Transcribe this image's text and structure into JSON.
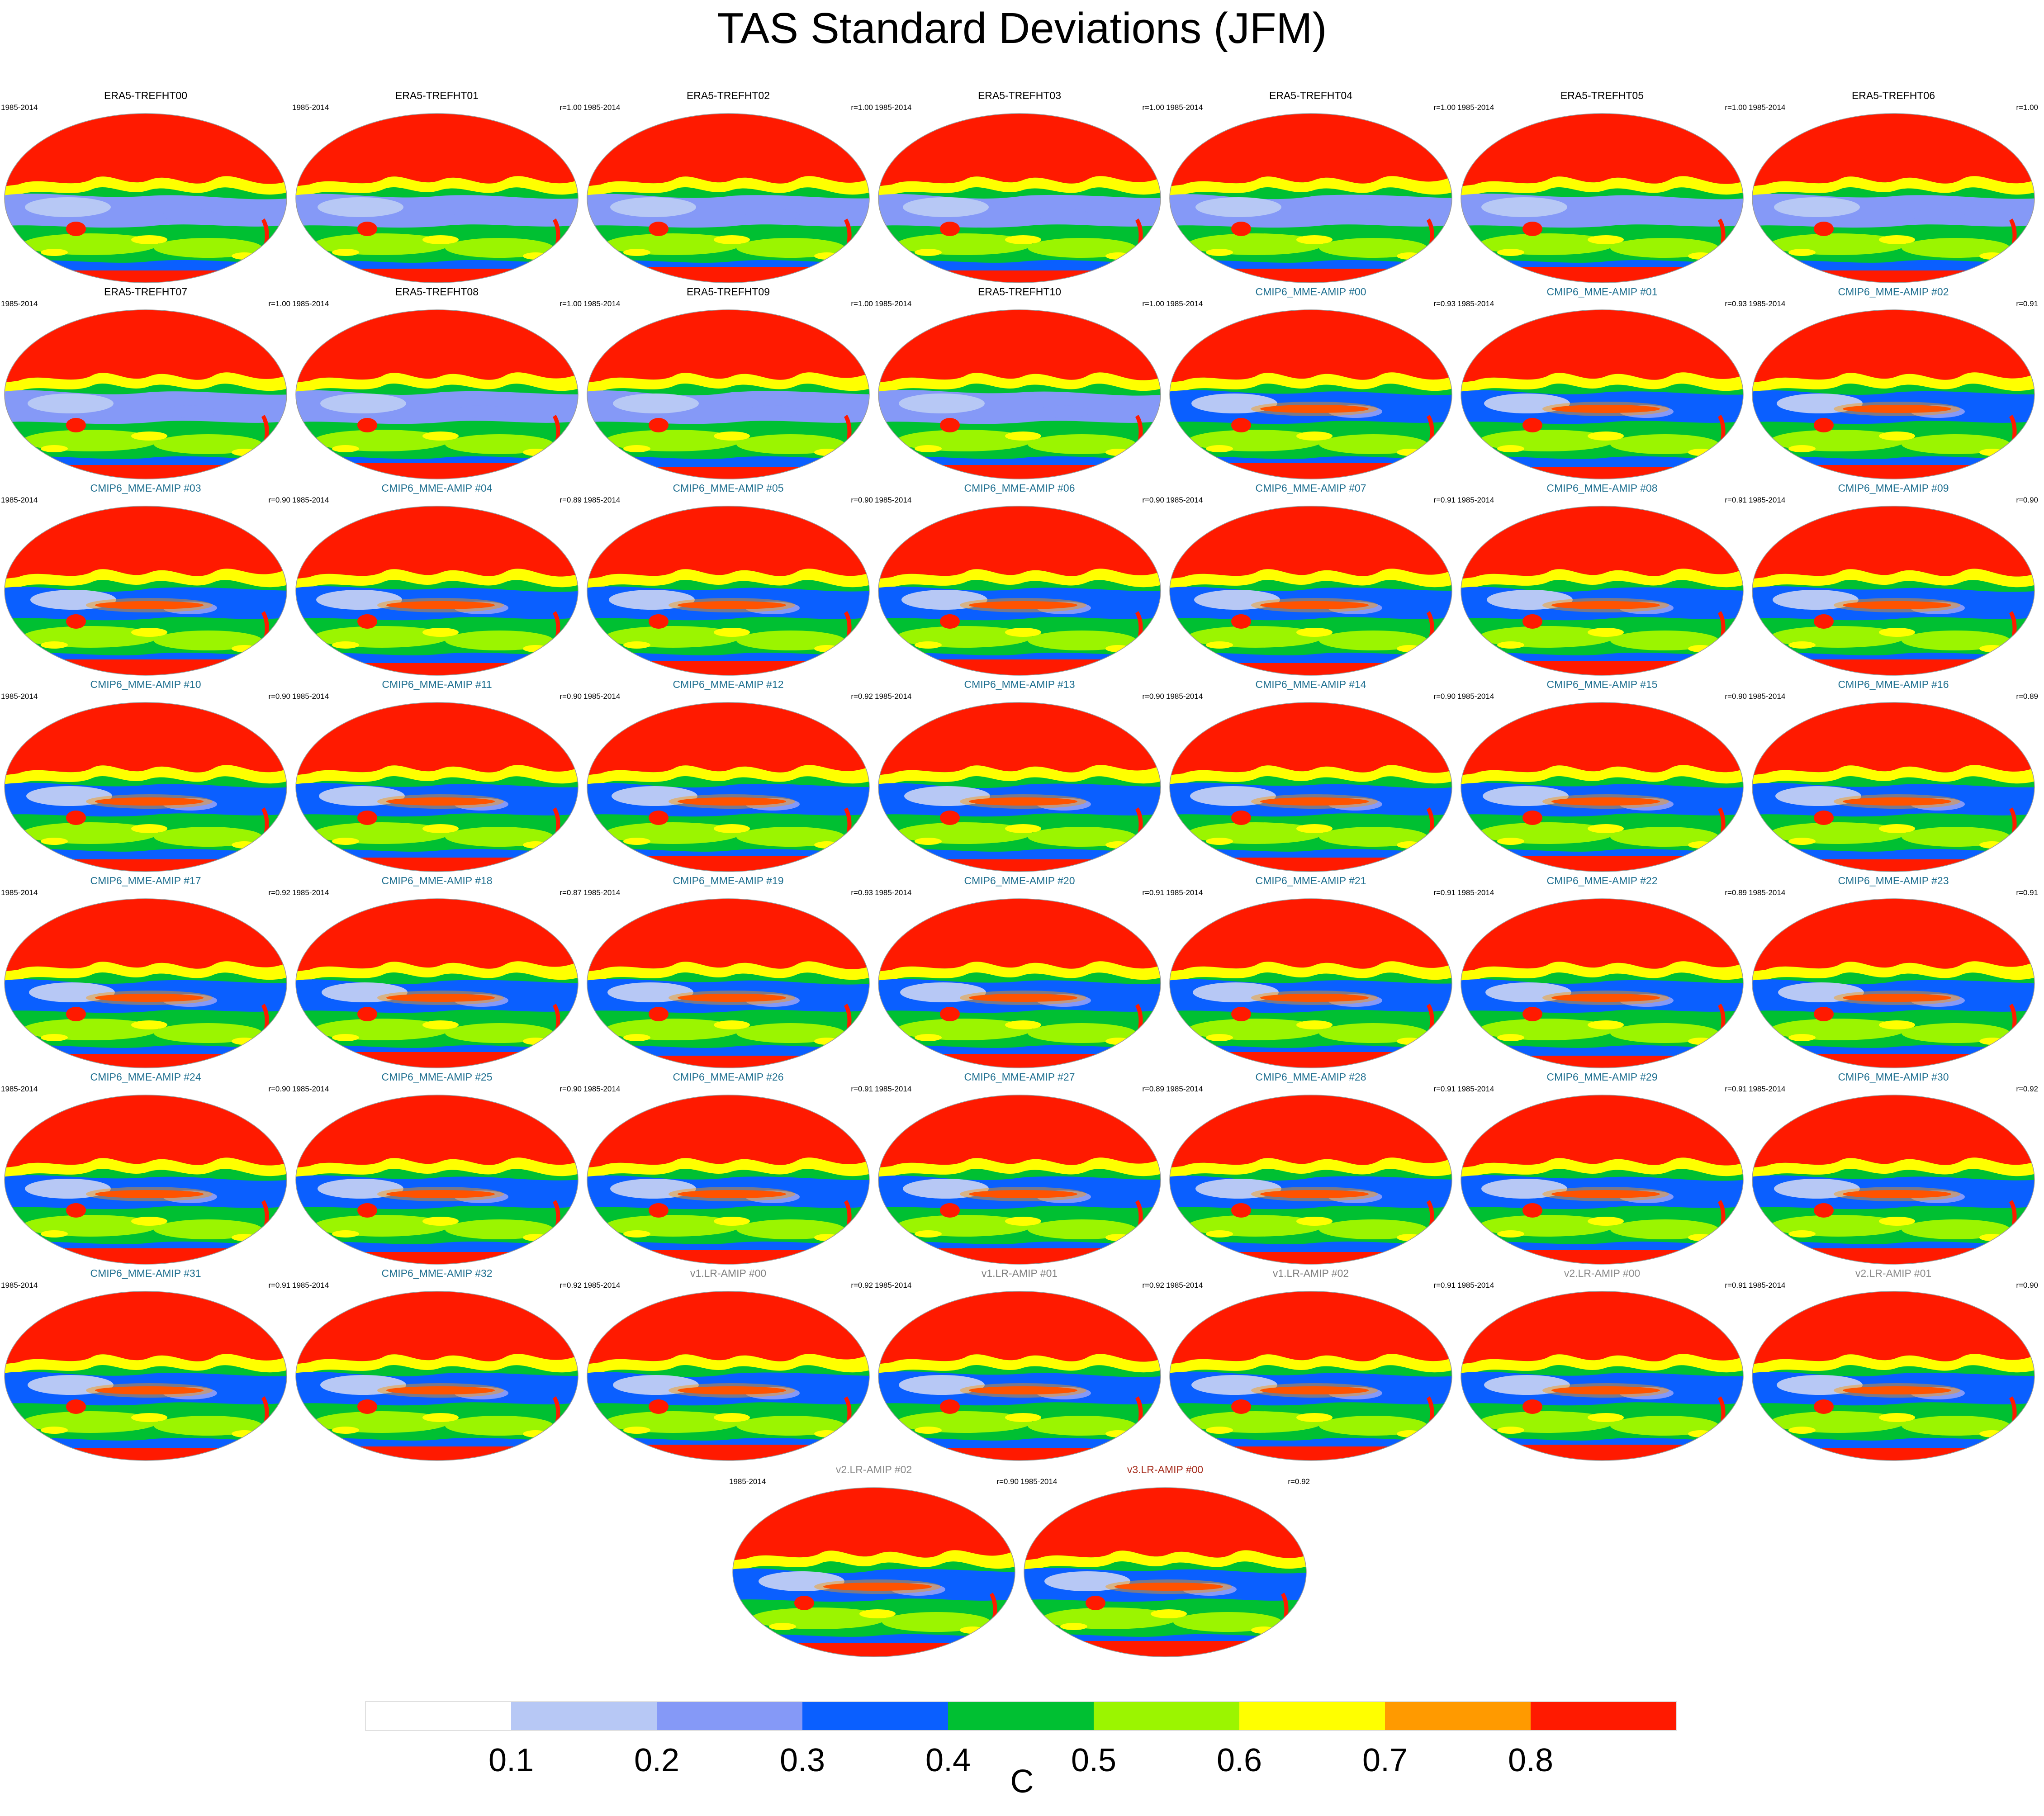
{
  "title": "TAS Standard Deviations (JFM)",
  "period": "1985-2014",
  "panels": [
    {
      "label": "ERA5-TREFHT00",
      "corr": "",
      "group": "era5"
    },
    {
      "label": "ERA5-TREFHT01",
      "corr": "r=1.00",
      "group": "era5"
    },
    {
      "label": "ERA5-TREFHT02",
      "corr": "r=1.00",
      "group": "era5"
    },
    {
      "label": "ERA5-TREFHT03",
      "corr": "r=1.00",
      "group": "era5"
    },
    {
      "label": "ERA5-TREFHT04",
      "corr": "r=1.00",
      "group": "era5"
    },
    {
      "label": "ERA5-TREFHT05",
      "corr": "r=1.00",
      "group": "era5"
    },
    {
      "label": "ERA5-TREFHT06",
      "corr": "r=1.00",
      "group": "era5"
    },
    {
      "label": "ERA5-TREFHT07",
      "corr": "r=1.00",
      "group": "era5"
    },
    {
      "label": "ERA5-TREFHT08",
      "corr": "r=1.00",
      "group": "era5"
    },
    {
      "label": "ERA5-TREFHT09",
      "corr": "r=1.00",
      "group": "era5"
    },
    {
      "label": "ERA5-TREFHT10",
      "corr": "r=1.00",
      "group": "era5"
    },
    {
      "label": "CMIP6_MME-AMIP  #00",
      "corr": "r=0.93",
      "group": "cmip"
    },
    {
      "label": "CMIP6_MME-AMIP  #01",
      "corr": "r=0.93",
      "group": "cmip"
    },
    {
      "label": "CMIP6_MME-AMIP  #02",
      "corr": "r=0.91",
      "group": "cmip"
    },
    {
      "label": "CMIP6_MME-AMIP  #03",
      "corr": "r=0.90",
      "group": "cmip"
    },
    {
      "label": "CMIP6_MME-AMIP  #04",
      "corr": "r=0.89",
      "group": "cmip"
    },
    {
      "label": "CMIP6_MME-AMIP  #05",
      "corr": "r=0.90",
      "group": "cmip"
    },
    {
      "label": "CMIP6_MME-AMIP  #06",
      "corr": "r=0.90",
      "group": "cmip"
    },
    {
      "label": "CMIP6_MME-AMIP  #07",
      "corr": "r=0.91",
      "group": "cmip"
    },
    {
      "label": "CMIP6_MME-AMIP  #08",
      "corr": "r=0.91",
      "group": "cmip"
    },
    {
      "label": "CMIP6_MME-AMIP  #09",
      "corr": "r=0.90",
      "group": "cmip"
    },
    {
      "label": "CMIP6_MME-AMIP  #10",
      "corr": "r=0.90",
      "group": "cmip"
    },
    {
      "label": "CMIP6_MME-AMIP  #11",
      "corr": "r=0.90",
      "group": "cmip"
    },
    {
      "label": "CMIP6_MME-AMIP  #12",
      "corr": "r=0.92",
      "group": "cmip"
    },
    {
      "label": "CMIP6_MME-AMIP  #13",
      "corr": "r=0.90",
      "group": "cmip"
    },
    {
      "label": "CMIP6_MME-AMIP  #14",
      "corr": "r=0.90",
      "group": "cmip"
    },
    {
      "label": "CMIP6_MME-AMIP  #15",
      "corr": "r=0.90",
      "group": "cmip"
    },
    {
      "label": "CMIP6_MME-AMIP  #16",
      "corr": "r=0.89",
      "group": "cmip"
    },
    {
      "label": "CMIP6_MME-AMIP  #17",
      "corr": "r=0.92",
      "group": "cmip"
    },
    {
      "label": "CMIP6_MME-AMIP  #18",
      "corr": "r=0.87",
      "group": "cmip"
    },
    {
      "label": "CMIP6_MME-AMIP  #19",
      "corr": "r=0.93",
      "group": "cmip"
    },
    {
      "label": "CMIP6_MME-AMIP  #20",
      "corr": "r=0.91",
      "group": "cmip"
    },
    {
      "label": "CMIP6_MME-AMIP  #21",
      "corr": "r=0.91",
      "group": "cmip"
    },
    {
      "label": "CMIP6_MME-AMIP  #22",
      "corr": "r=0.89",
      "group": "cmip"
    },
    {
      "label": "CMIP6_MME-AMIP  #23",
      "corr": "r=0.91",
      "group": "cmip"
    },
    {
      "label": "CMIP6_MME-AMIP  #24",
      "corr": "r=0.90",
      "group": "cmip"
    },
    {
      "label": "CMIP6_MME-AMIP  #25",
      "corr": "r=0.90",
      "group": "cmip"
    },
    {
      "label": "CMIP6_MME-AMIP  #26",
      "corr": "r=0.91",
      "group": "cmip"
    },
    {
      "label": "CMIP6_MME-AMIP  #27",
      "corr": "r=0.89",
      "group": "cmip"
    },
    {
      "label": "CMIP6_MME-AMIP  #28",
      "corr": "r=0.91",
      "group": "cmip"
    },
    {
      "label": "CMIP6_MME-AMIP  #29",
      "corr": "r=0.91",
      "group": "cmip"
    },
    {
      "label": "CMIP6_MME-AMIP  #30",
      "corr": "r=0.92",
      "group": "cmip"
    },
    {
      "label": "CMIP6_MME-AMIP  #31",
      "corr": "r=0.91",
      "group": "cmip"
    },
    {
      "label": "CMIP6_MME-AMIP  #32",
      "corr": "r=0.92",
      "group": "cmip"
    },
    {
      "label": "v1.LR-AMIP  #00",
      "corr": "r=0.92",
      "group": "v1"
    },
    {
      "label": "v1.LR-AMIP  #01",
      "corr": "r=0.92",
      "group": "v1"
    },
    {
      "label": "v1.LR-AMIP  #02",
      "corr": "r=0.91",
      "group": "v1"
    },
    {
      "label": "v2.LR-AMIP  #00",
      "corr": "r=0.91",
      "group": "v2"
    },
    {
      "label": "v2.LR-AMIP  #01",
      "corr": "r=0.90",
      "group": "v2"
    },
    {
      "label": "v2.LR-AMIP  #02",
      "corr": "r=0.90",
      "group": "v2"
    },
    {
      "label": "v3.LR-AMIP  #00",
      "corr": "r=0.92",
      "group": "v3"
    }
  ],
  "colorbar": {
    "unit": "C",
    "tick_labels": [
      "0.1",
      "0.2",
      "0.3",
      "0.4",
      "0.5",
      "0.6",
      "0.7",
      "0.8"
    ],
    "colors": [
      "#ffffff",
      "#b7c8f5",
      "#8599f7",
      "#0a5fff",
      "#00c032",
      "#9bf500",
      "#ffff00",
      "#ff9a00",
      "#ff1a00"
    ]
  },
  "map_colors": {
    "high": "#ff1a00",
    "mid_high": "#ff9a00",
    "mid": "#ffff00",
    "mid_low": "#9bf500",
    "low_mid": "#00c032",
    "low": "#0a5fff",
    "lower": "#8599f7",
    "lowest": "#b7c8f5"
  }
}
